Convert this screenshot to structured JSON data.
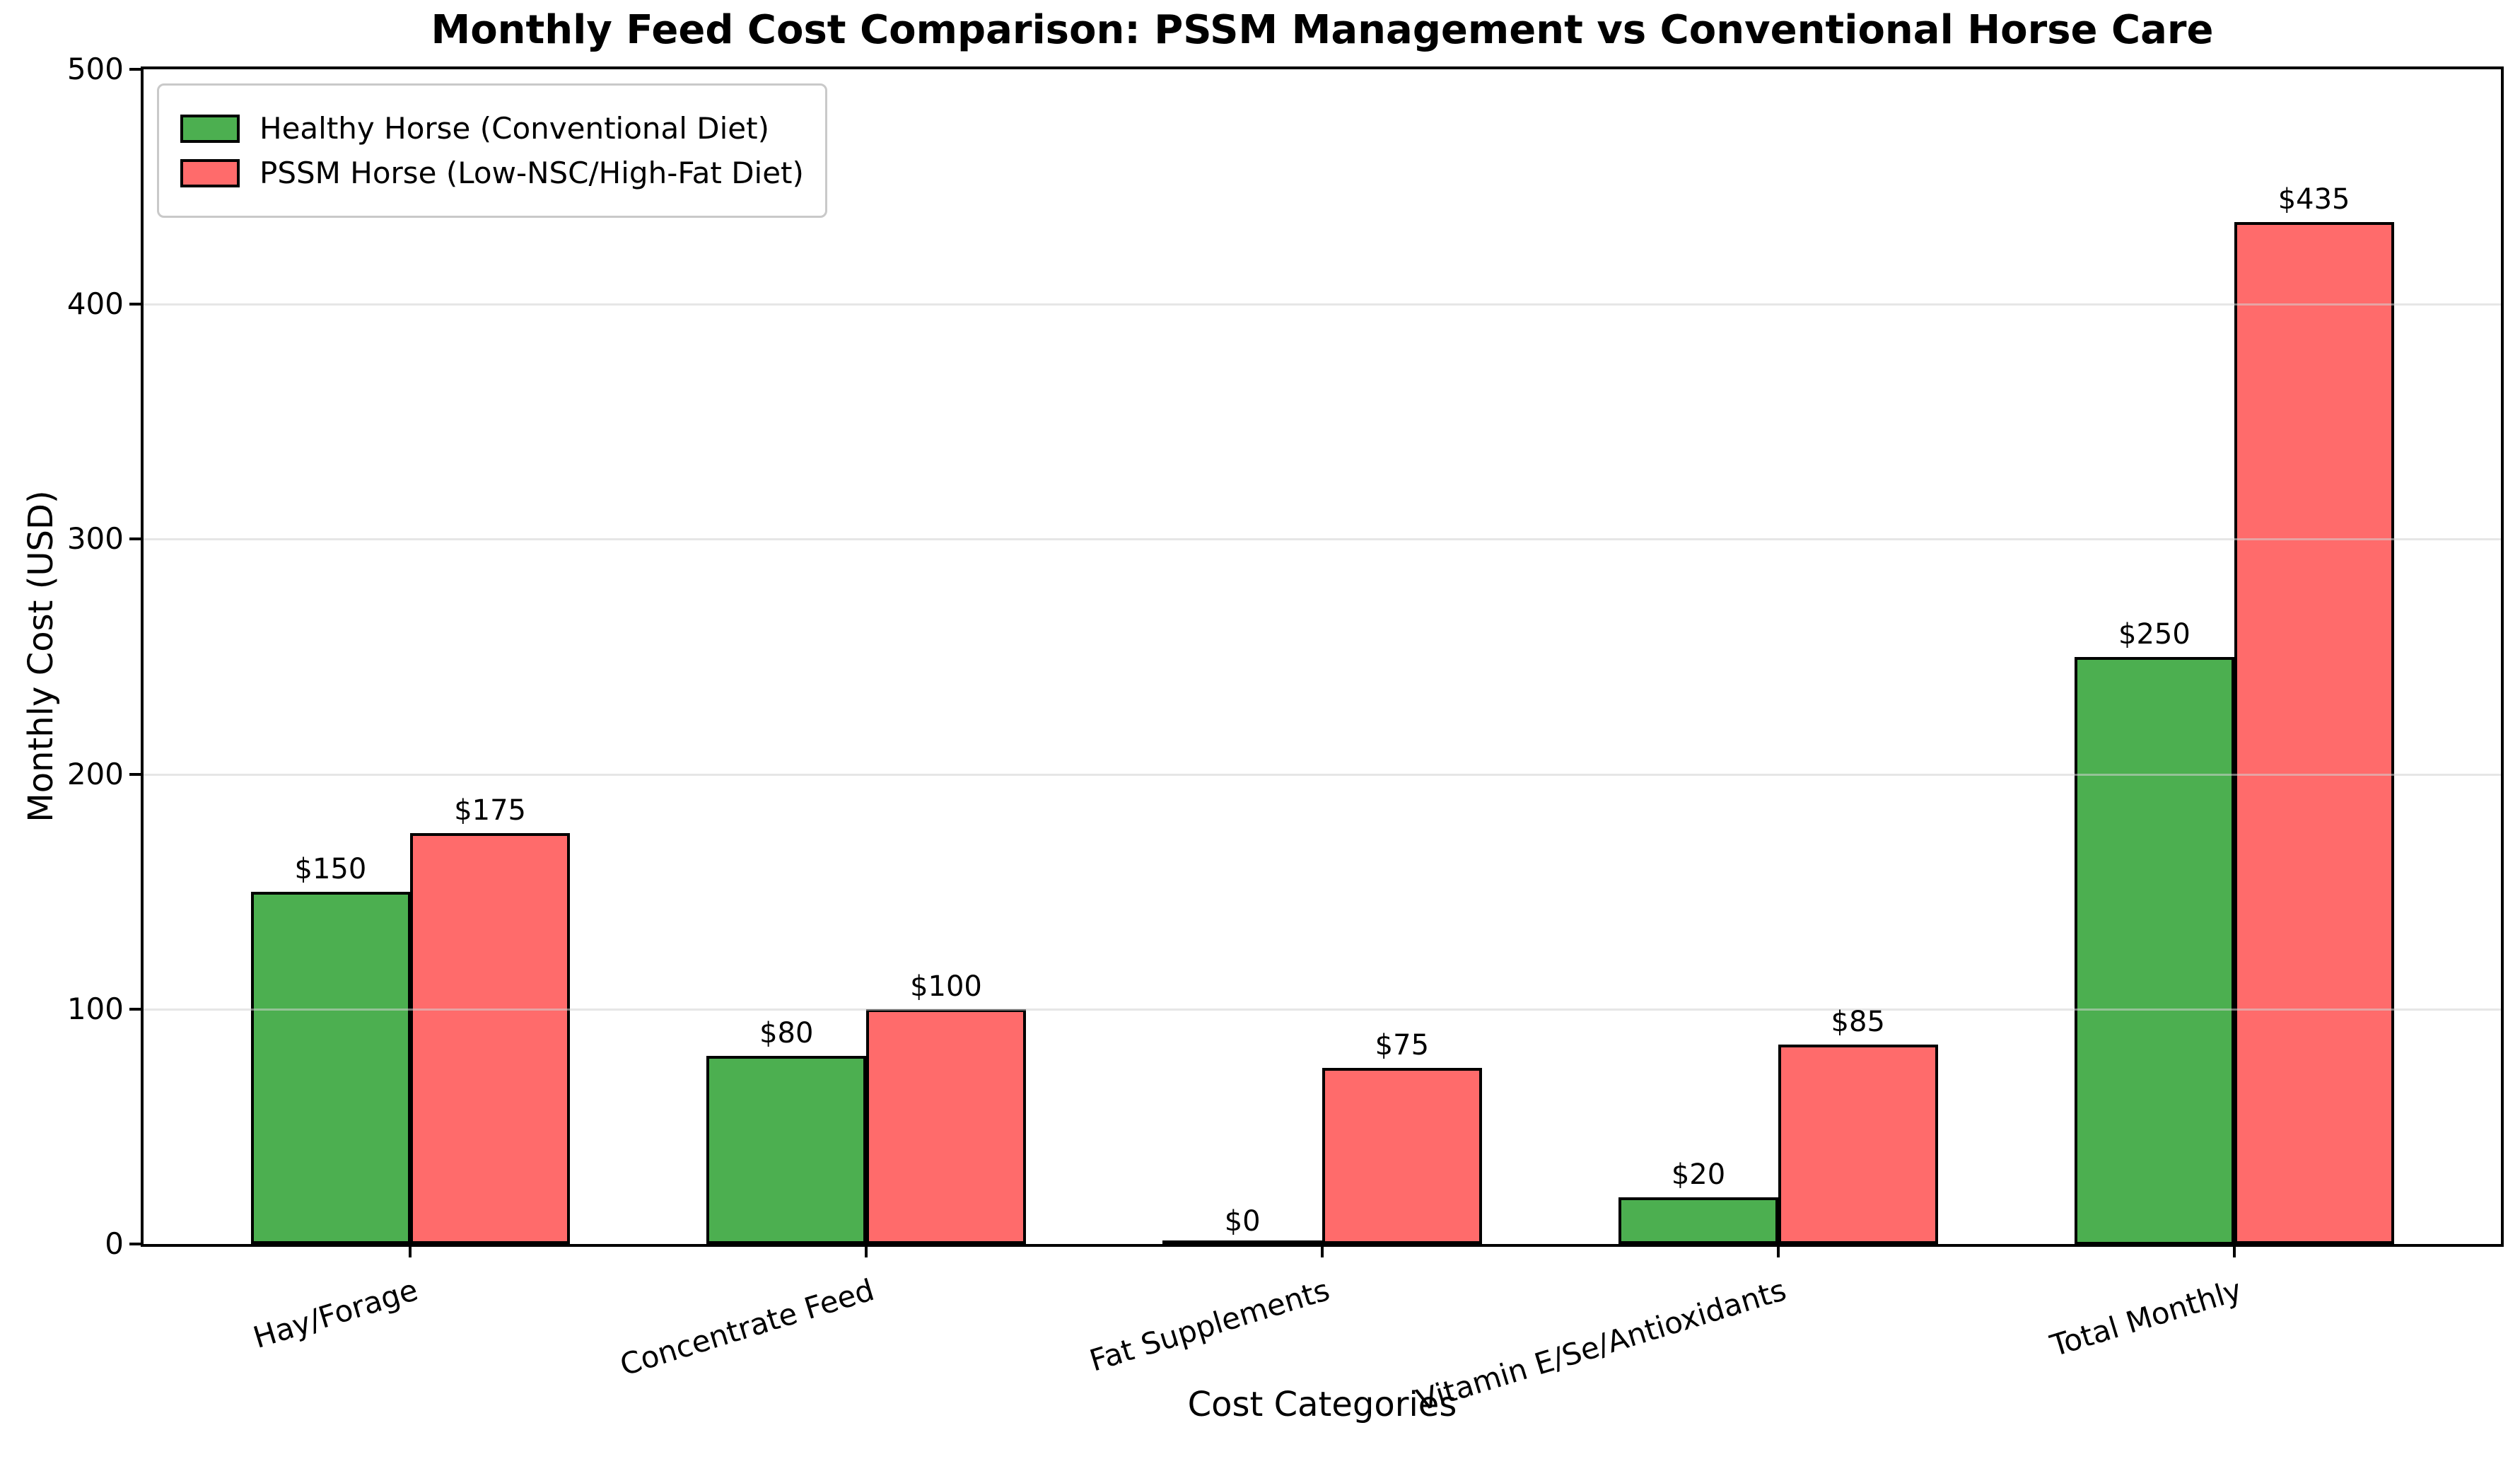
{
  "chart_data": {
    "type": "bar",
    "title": "Monthly Feed Cost Comparison: PSSM Management vs Conventional Horse Care",
    "xlabel": "Cost Categories",
    "ylabel": "Monthly Cost (USD)",
    "categories": [
      "Hay/Forage",
      "Concentrate Feed",
      "Fat Supplements",
      "Vitamin E/Se/Antioxidants",
      "Total Monthly"
    ],
    "series": [
      {
        "name": "Healthy Horse (Conventional Diet)",
        "color": "#4CAF50",
        "values": [
          150,
          80,
          0,
          20,
          250
        ],
        "value_labels": [
          "$150",
          "$80",
          "$0",
          "$20",
          "$250"
        ]
      },
      {
        "name": "PSSM Horse (Low-NSC/High-Fat Diet)",
        "color": "#FF6B6B",
        "values": [
          175,
          100,
          75,
          85,
          435
        ],
        "value_labels": [
          "$175",
          "$100",
          "$75",
          "$85",
          "$435"
        ]
      }
    ],
    "ylim": [
      0,
      500
    ],
    "yticks": [
      0,
      100,
      200,
      300,
      400,
      500
    ],
    "ytick_labels": [
      "0",
      "100",
      "200",
      "300",
      "400",
      "500"
    ],
    "grid": true,
    "grid_over_bars": true,
    "gridline_color": "#e0e0e0",
    "bar_edge_color": "#000000",
    "legend_position": "upper left",
    "value_label_prefix": "$"
  }
}
